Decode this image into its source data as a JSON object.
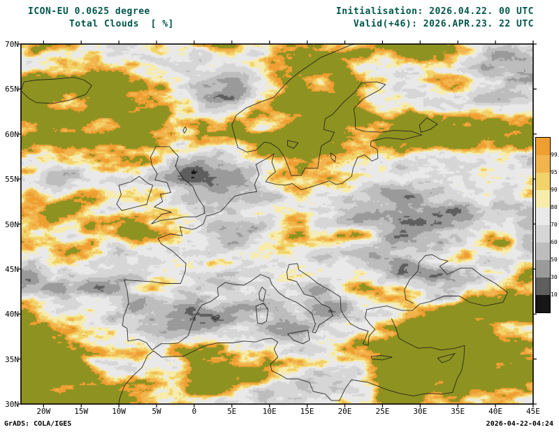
{
  "header": {
    "left_line1": "ICON-EU 0.0625 degree",
    "left_line2": "Total Clouds  [ %]",
    "right_line1": "Initialisation: 2026.04.22. 00 UTC",
    "right_line2": "Valid(+46): 2026.APR.23. 22 UTC",
    "text_color": "#00564a"
  },
  "map": {
    "lat_labels": [
      "70N",
      "65N",
      "60N",
      "55N",
      "50N",
      "45N",
      "40N",
      "35N",
      "30N"
    ],
    "lon_labels": [
      "20W",
      "15W",
      "10W",
      "5W",
      "0",
      "5E",
      "10E",
      "15E",
      "20E",
      "25E",
      "30E",
      "35E",
      "40E",
      "45E"
    ],
    "background_color": "#8e9220",
    "coastline_color": "#1c1c1c",
    "palette_low_to_high": [
      "#161616",
      "#5e5e5e",
      "#9a9a9a",
      "#bdbdbd",
      "#d6d6d6",
      "#e9e9e9",
      "#f7ecac",
      "#f2d36a",
      "#f2b54d",
      "#ef9f32"
    ]
  },
  "colorbar": {
    "labels_top_to_bottom": [
      "99.5",
      "95",
      "90",
      "80",
      "70",
      "60",
      "50",
      "30",
      "10"
    ],
    "colors_top_to_bottom": [
      "#ef9f32",
      "#f2b54d",
      "#f2d36a",
      "#f7ecac",
      "#e9e9e9",
      "#d6d6d6",
      "#bdbdbd",
      "#9a9a9a",
      "#5e5e5e",
      "#161616"
    ]
  },
  "footer": {
    "left": "GrADS: COLA/IGES",
    "right": "2026-04-22-04:24"
  }
}
